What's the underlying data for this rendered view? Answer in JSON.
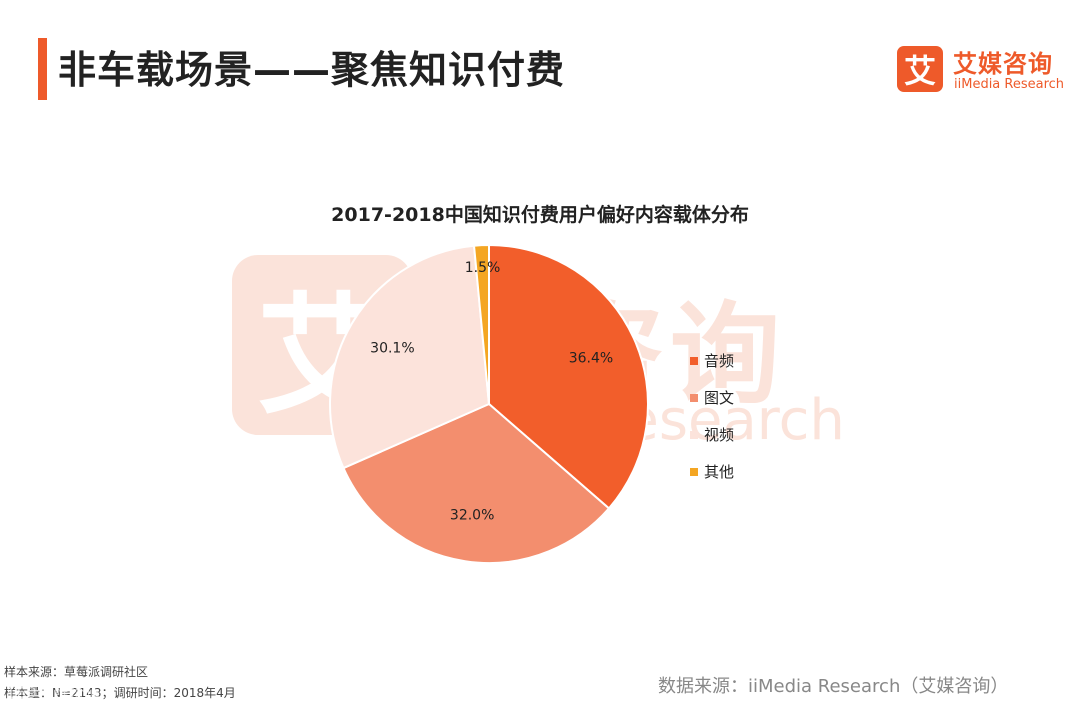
{
  "header": {
    "title": "非车载场景——聚焦知识付费"
  },
  "logo": {
    "glyph": "艾",
    "cn": "艾媒咨询",
    "en": "iiMedia Research"
  },
  "watermark": {
    "glyph": "艾",
    "cn": "媒咨询",
    "en": "Research"
  },
  "chart_data": {
    "type": "pie",
    "title": "2017-2018中国知识付费用户偏好内容载体分布",
    "categories": [
      "音频",
      "图文",
      "视频",
      "其他"
    ],
    "values": [
      36.4,
      32.0,
      30.1,
      1.5
    ],
    "value_labels": [
      "36.4%",
      "32.0%",
      "30.1%",
      "1.5%"
    ],
    "colors": [
      "#f25e2b",
      "#f38e6e",
      "#fce3db",
      "#f4a623"
    ],
    "legend_position": "right",
    "start_angle": "top, clockwise"
  },
  "footer": {
    "sample_source": "样本来源：草莓派调研社区",
    "sample_size": "样本量：N=2143；调研时间：2018年4月",
    "data_source": "数据来源：iiMedia Research（艾媒咨询）",
    "corner_mark": "169六维价值"
  }
}
